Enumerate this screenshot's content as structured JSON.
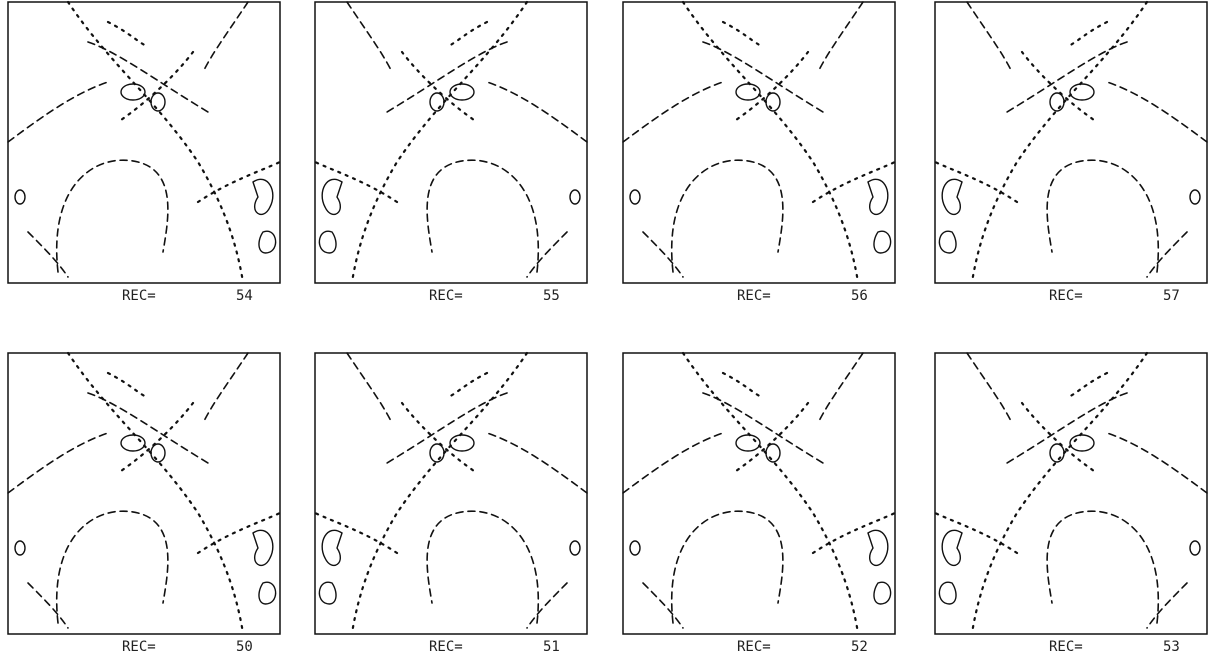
{
  "panels": [
    {
      "label": "REC=",
      "number": 54
    },
    {
      "label": "REC=",
      "number": 55
    },
    {
      "label": "REC=",
      "number": 56
    },
    {
      "label": "REC=",
      "number": 57
    },
    {
      "label": "REC=",
      "number": 50
    },
    {
      "label": "REC=",
      "number": 51
    },
    {
      "label": "REC=",
      "number": 52
    },
    {
      "label": "REC=",
      "number": 53
    }
  ]
}
